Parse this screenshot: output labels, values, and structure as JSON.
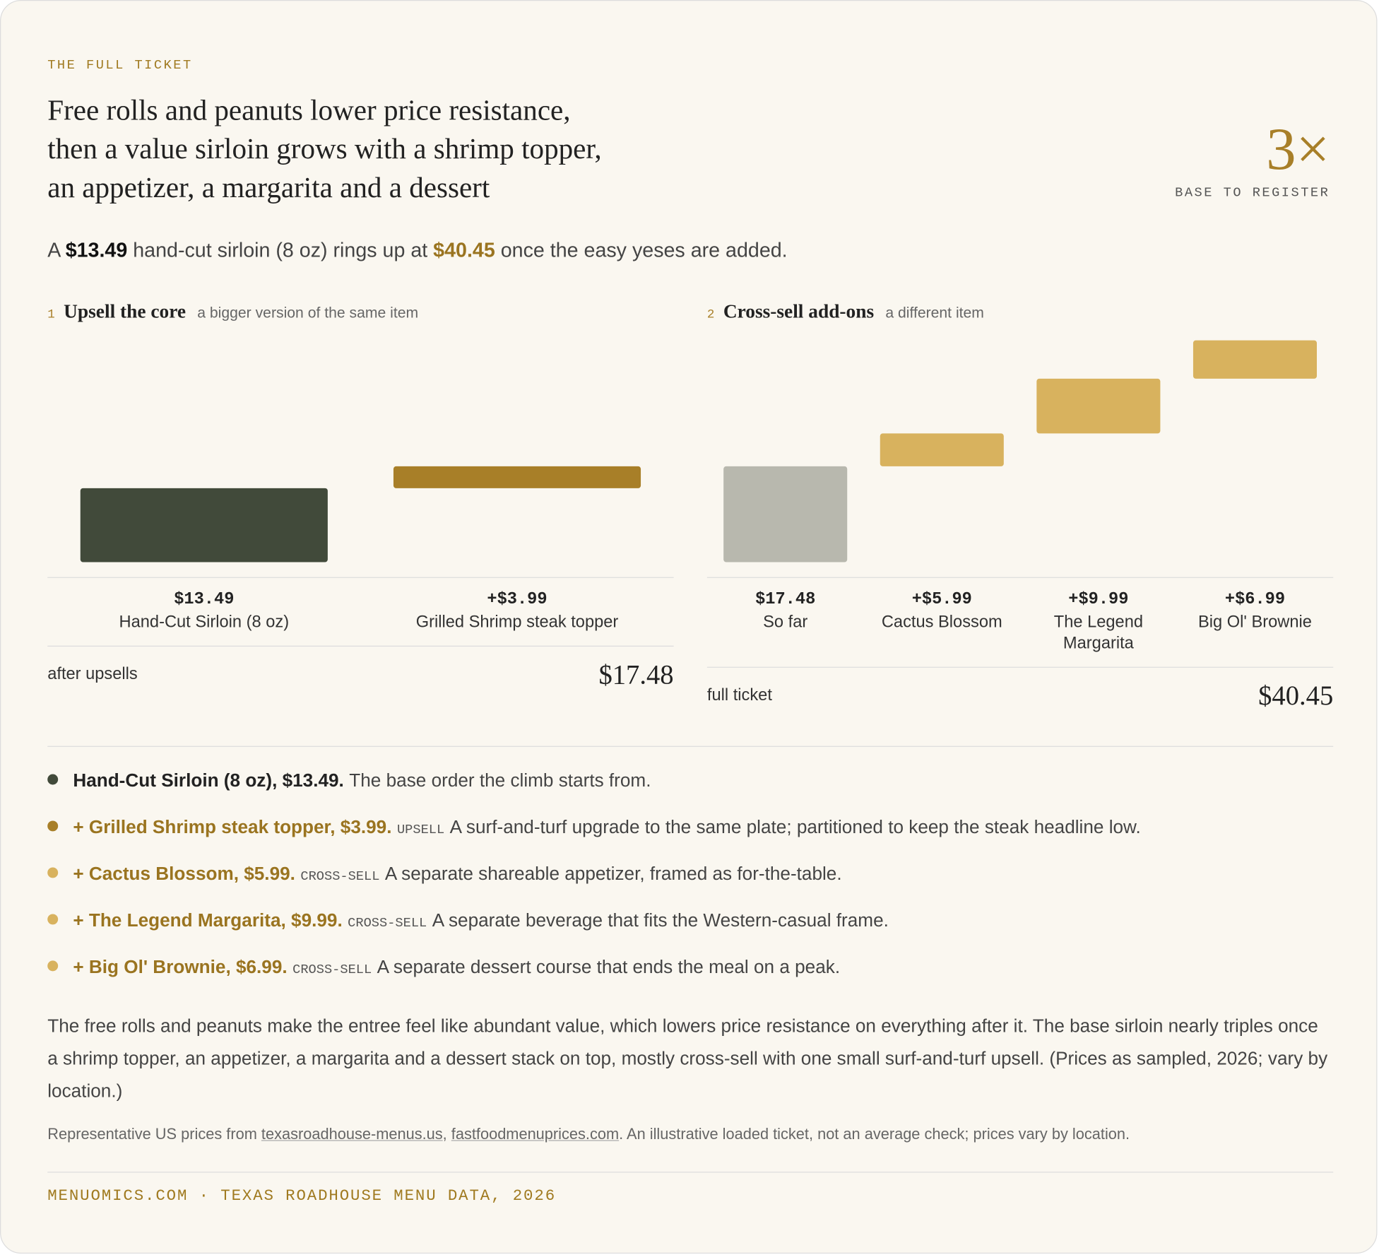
{
  "eyebrow": "THE FULL TICKET",
  "headline": [
    "Free rolls and peanuts lower price resistance,",
    "then a value sirloin grows with a shrimp topper,",
    "an appetizer, a margarita and a dessert"
  ],
  "multiple": {
    "value": "3×",
    "label": "BASE TO REGISTER"
  },
  "intro": [
    {
      "text": "A "
    },
    {
      "text": "$13.49",
      "style": "strong"
    },
    {
      "text": " hand-cut sirloin (8 oz) rings up at "
    },
    {
      "text": "$40.45",
      "style": "accent"
    },
    {
      "text": " once the easy yeses are added."
    }
  ],
  "chart_data": [
    {
      "type": "waterfall",
      "step": "1",
      "title": "Upsell the core",
      "subtitle": "a bigger version of the same item",
      "categories": [
        "Hand-Cut Sirloin (8 oz)",
        "Grilled Shrimp steak topper"
      ],
      "values": [
        13.49,
        3.99
      ],
      "value_labels": [
        "$13.49",
        "+$3.99"
      ],
      "colors": [
        "#414a3a",
        "#a87f28"
      ],
      "ylim": [
        0,
        43
      ],
      "total_label": "after upsells",
      "total": "$17.48"
    },
    {
      "type": "waterfall",
      "step": "2",
      "title": "Cross-sell add-ons",
      "subtitle": "a different item",
      "categories": [
        "So far",
        "Cactus Blossom",
        "The Legend Margarita",
        "Big Ol' Brownie"
      ],
      "values": [
        17.48,
        5.99,
        9.99,
        6.99
      ],
      "value_labels": [
        "$17.48",
        "+$5.99",
        "+$9.99",
        "+$6.99"
      ],
      "colors": [
        "#b8b8ae",
        "#d8b25e",
        "#d8b25e",
        "#d8b25e"
      ],
      "ylim": [
        0,
        43
      ],
      "total_label": "full ticket",
      "total": "$40.45"
    }
  ],
  "items": [
    {
      "label": "Hand-Cut Sirloin (8 oz), $13.49.",
      "text": "The base order the climb starts from.",
      "color": "#414a3a"
    },
    {
      "label": "+ Grilled Shrimp steak topper, $3.99.",
      "tag": "UPSELL",
      "text": "A surf-and-turf upgrade to the same plate; partitioned to keep the steak headline low.",
      "color": "#a87f28"
    },
    {
      "label": "+ Cactus Blossom, $5.99.",
      "tag": "CROSS-SELL",
      "text": "A separate shareable appetizer, framed as for-the-table.",
      "color": "#d8b25e"
    },
    {
      "label": "+ The Legend Margarita, $9.99.",
      "tag": "CROSS-SELL",
      "text": "A separate beverage that fits the Western-casual frame.",
      "color": "#d8b25e"
    },
    {
      "label": "+ Big Ol' Brownie, $6.99.",
      "tag": "CROSS-SELL",
      "text": "A separate dessert course that ends the meal on a peak.",
      "color": "#d8b25e"
    }
  ],
  "summary": "The free rolls and peanuts make the entree feel like abundant value, which lowers price resistance on everything after it. The base sirloin nearly triples once a shrimp topper, an appetizer, a margarita and a dessert stack on top, mostly cross-sell with one small surf-and-turf upsell. (Prices as sampled, 2026; vary by location.)",
  "source": [
    {
      "text": "Representative US prices from "
    },
    {
      "text": "texasroadhouse-menus.us",
      "link": true
    },
    {
      "text": ", "
    },
    {
      "text": "fastfoodmenuprices.com",
      "link": true
    },
    {
      "text": ". An illustrative loaded ticket, not an average check; prices vary by location."
    }
  ],
  "footer": "MENUOMICS.COM · TEXAS ROADHOUSE MENU DATA, 2026"
}
